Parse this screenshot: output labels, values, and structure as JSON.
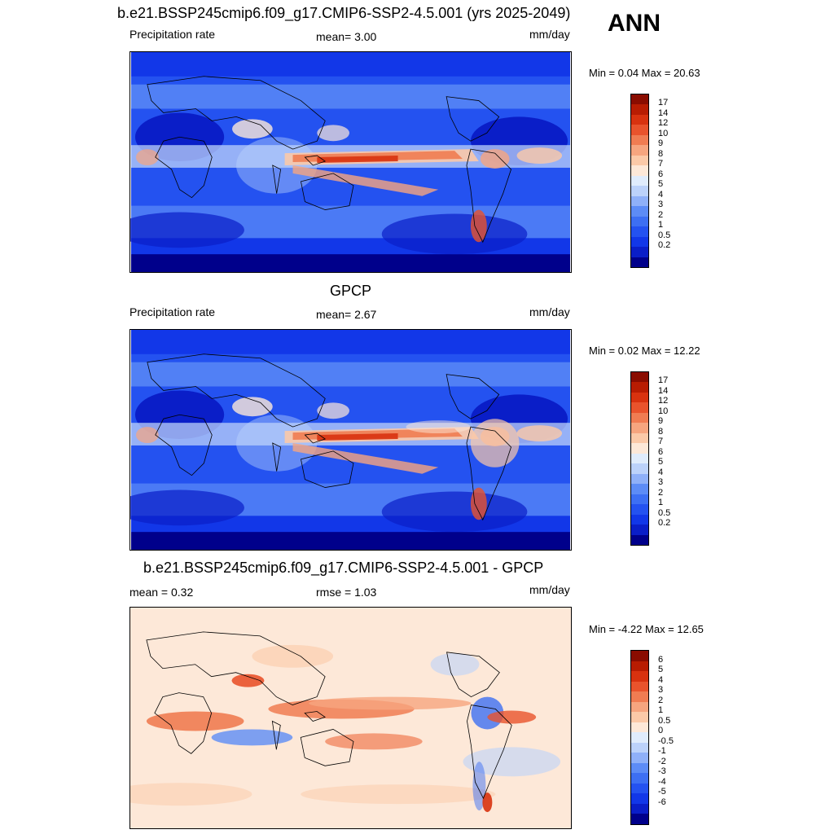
{
  "season": "ANN",
  "palettes": {
    "precip": [
      "#00008b",
      "#0a1ec8",
      "#1237e8",
      "#2452f0",
      "#3d6ff3",
      "#5d8cf6",
      "#8fb0f8",
      "#bcd2fa",
      "#e0ecfc",
      "#fde8d8",
      "#fbc9a8",
      "#f6a57f",
      "#f07c52",
      "#e9532c",
      "#d8320f",
      "#b81c02",
      "#8a0c00"
    ],
    "diff": [
      "#00008b",
      "#0a1ec8",
      "#1237e8",
      "#2452f0",
      "#3d6ff3",
      "#5d8cf6",
      "#8fb0f8",
      "#bcd2fa",
      "#e0ecfc",
      "#fde8d8",
      "#fbc9a8",
      "#f6a57f",
      "#f07c52",
      "#e9532c",
      "#d8320f",
      "#b81c02",
      "#8a0c00"
    ]
  },
  "panels": [
    {
      "id": "model",
      "title": "b.e21.BSSP245cmip6.f09_g17.CMIP6-SSP2-4.5.001 (yrs 2025-2049)",
      "left_label": "Precipitation rate",
      "center_label": "mean=   3.00",
      "units": "mm/day",
      "minmax": "Min =   0.04 Max =  20.63",
      "colorbar_labels": [
        "17",
        "14",
        "12",
        "10",
        "9",
        "8",
        "7",
        "6",
        "5",
        "4",
        "3",
        "2",
        "1",
        "0.5",
        "0.2"
      ],
      "palette": "precip"
    },
    {
      "id": "obs",
      "title": "GPCP",
      "left_label": "Precipitation rate",
      "center_label": "mean=   2.67",
      "units": "mm/day",
      "minmax": "Min =   0.02 Max =  12.22",
      "colorbar_labels": [
        "17",
        "14",
        "12",
        "10",
        "9",
        "8",
        "7",
        "6",
        "5",
        "4",
        "3",
        "2",
        "1",
        "0.5",
        "0.2"
      ],
      "palette": "precip"
    },
    {
      "id": "diff",
      "title": "b.e21.BSSP245cmip6.f09_g17.CMIP6-SSP2-4.5.001 - GPCP",
      "left_label": "mean =   0.32",
      "center_label": "rmse =   1.03",
      "units": "mm/day",
      "minmax": "Min =  -4.22 Max =  12.65",
      "colorbar_labels": [
        "6",
        "5",
        "4",
        "3",
        "2",
        "1",
        "0.5",
        "0",
        "-0.5",
        "-1",
        "-2",
        "-3",
        "-4",
        "-5",
        "-6"
      ],
      "palette": "diff"
    }
  ]
}
